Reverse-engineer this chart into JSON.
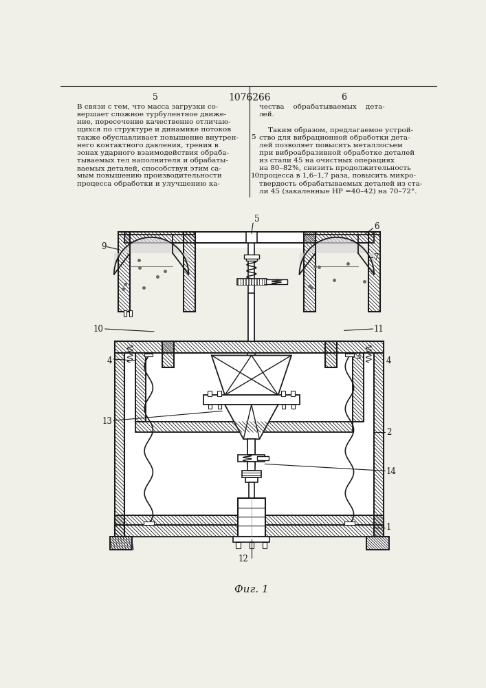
{
  "bg_color": "#f0efe8",
  "line_color": "#1a1a1a",
  "text_color": "#1a1a1a",
  "title": "1076266",
  "fig_label": "Фиг. 1",
  "left_text_lines": [
    "В связи с тем, что масса загрузки со-",
    "вершает сложное турбулентное движе-",
    "ние, пересечение качественно отличаю-",
    "щихся по структуре и динамике потоков",
    "также обуславливает повышение внутрен-",
    "него контактного давления, трения в",
    "зонах ударного взаимодействия обраба-",
    "тываемых тел наполнителя и обрабаты-",
    "ваемых деталей, способствуя этим са-",
    "мым повышению производительности",
    "процесса обработки и улучшению ка-"
  ],
  "right_text_lines": [
    "чества    обрабатываемых    дета-",
    "лей.",
    "",
    "    Таким образом, предлагаемое устрой-",
    "ство для вибрационной обработки дета-",
    "лей позволяет повысить металлосъем",
    "при виброабразивной обработке деталей",
    "из стали 45 на очистных операциях",
    "на 80–82%, снизить продолжительность",
    "процесса в 1,6–1,7 раза, повысить микро-",
    "твердость обрабатываемых деталей из ста-",
    "ли 45 (закаленные НР =40–42) на 70–72°."
  ]
}
